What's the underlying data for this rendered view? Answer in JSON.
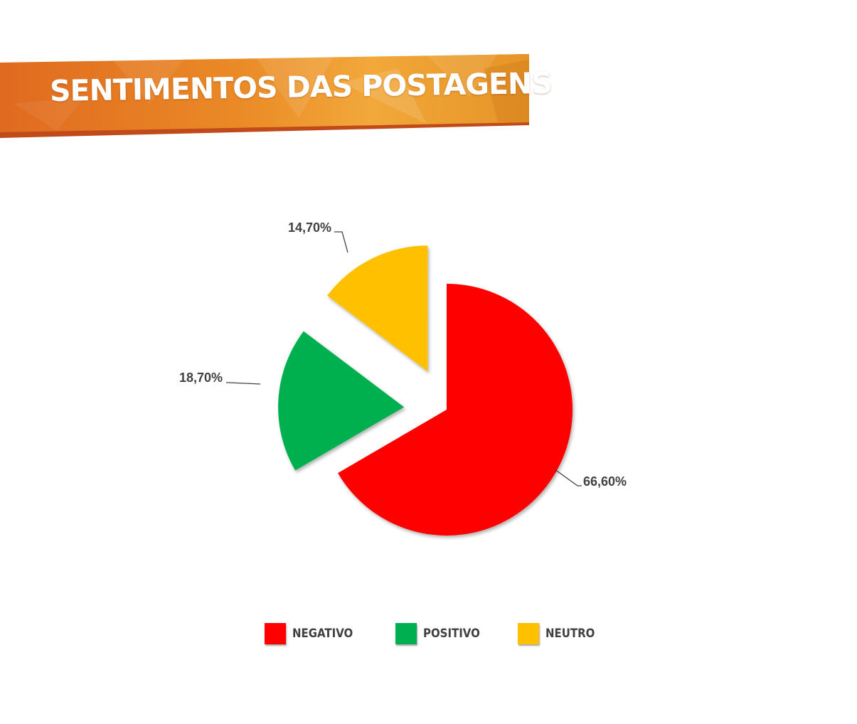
{
  "banner": {
    "title": "SENTIMENTOS DAS POSTAGENS"
  },
  "colors": {
    "banner_light": "#f0a030",
    "banner_dark": "#e06a20",
    "banner_shadow": "#c04a1a",
    "label_text": "#404040"
  },
  "chart_data": {
    "type": "pie",
    "title": "SENTIMENTOS DAS POSTAGENS",
    "categories": [
      "NEGATIVO",
      "POSITIVO",
      "NEUTRO"
    ],
    "values": [
      66.6,
      18.7,
      14.7
    ],
    "labels": [
      "66,60%",
      "18,70%",
      "14,70%"
    ],
    "colors": [
      "#ff0000",
      "#00b050",
      "#ffc000"
    ],
    "exploded": [
      false,
      true,
      true
    ],
    "legend_position": "bottom"
  },
  "legend": {
    "items": [
      {
        "label": "NEGATIVO",
        "color": "#ff0000"
      },
      {
        "label": "POSITIVO",
        "color": "#00b050"
      },
      {
        "label": "NEUTRO",
        "color": "#ffc000"
      }
    ]
  }
}
